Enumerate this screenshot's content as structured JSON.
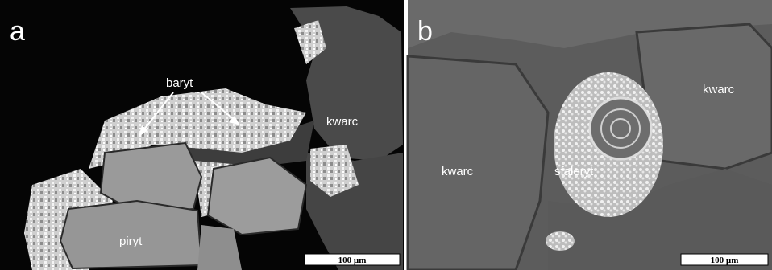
{
  "panels": [
    {
      "letter": "a",
      "labels": [
        "baryt",
        "kwarc",
        "piryt"
      ],
      "scale_bar": "100 µm"
    },
    {
      "letter": "b",
      "labels": [
        "kwarc",
        "kwarc",
        "sfaleryt"
      ],
      "scale_bar": "100 µm"
    }
  ]
}
